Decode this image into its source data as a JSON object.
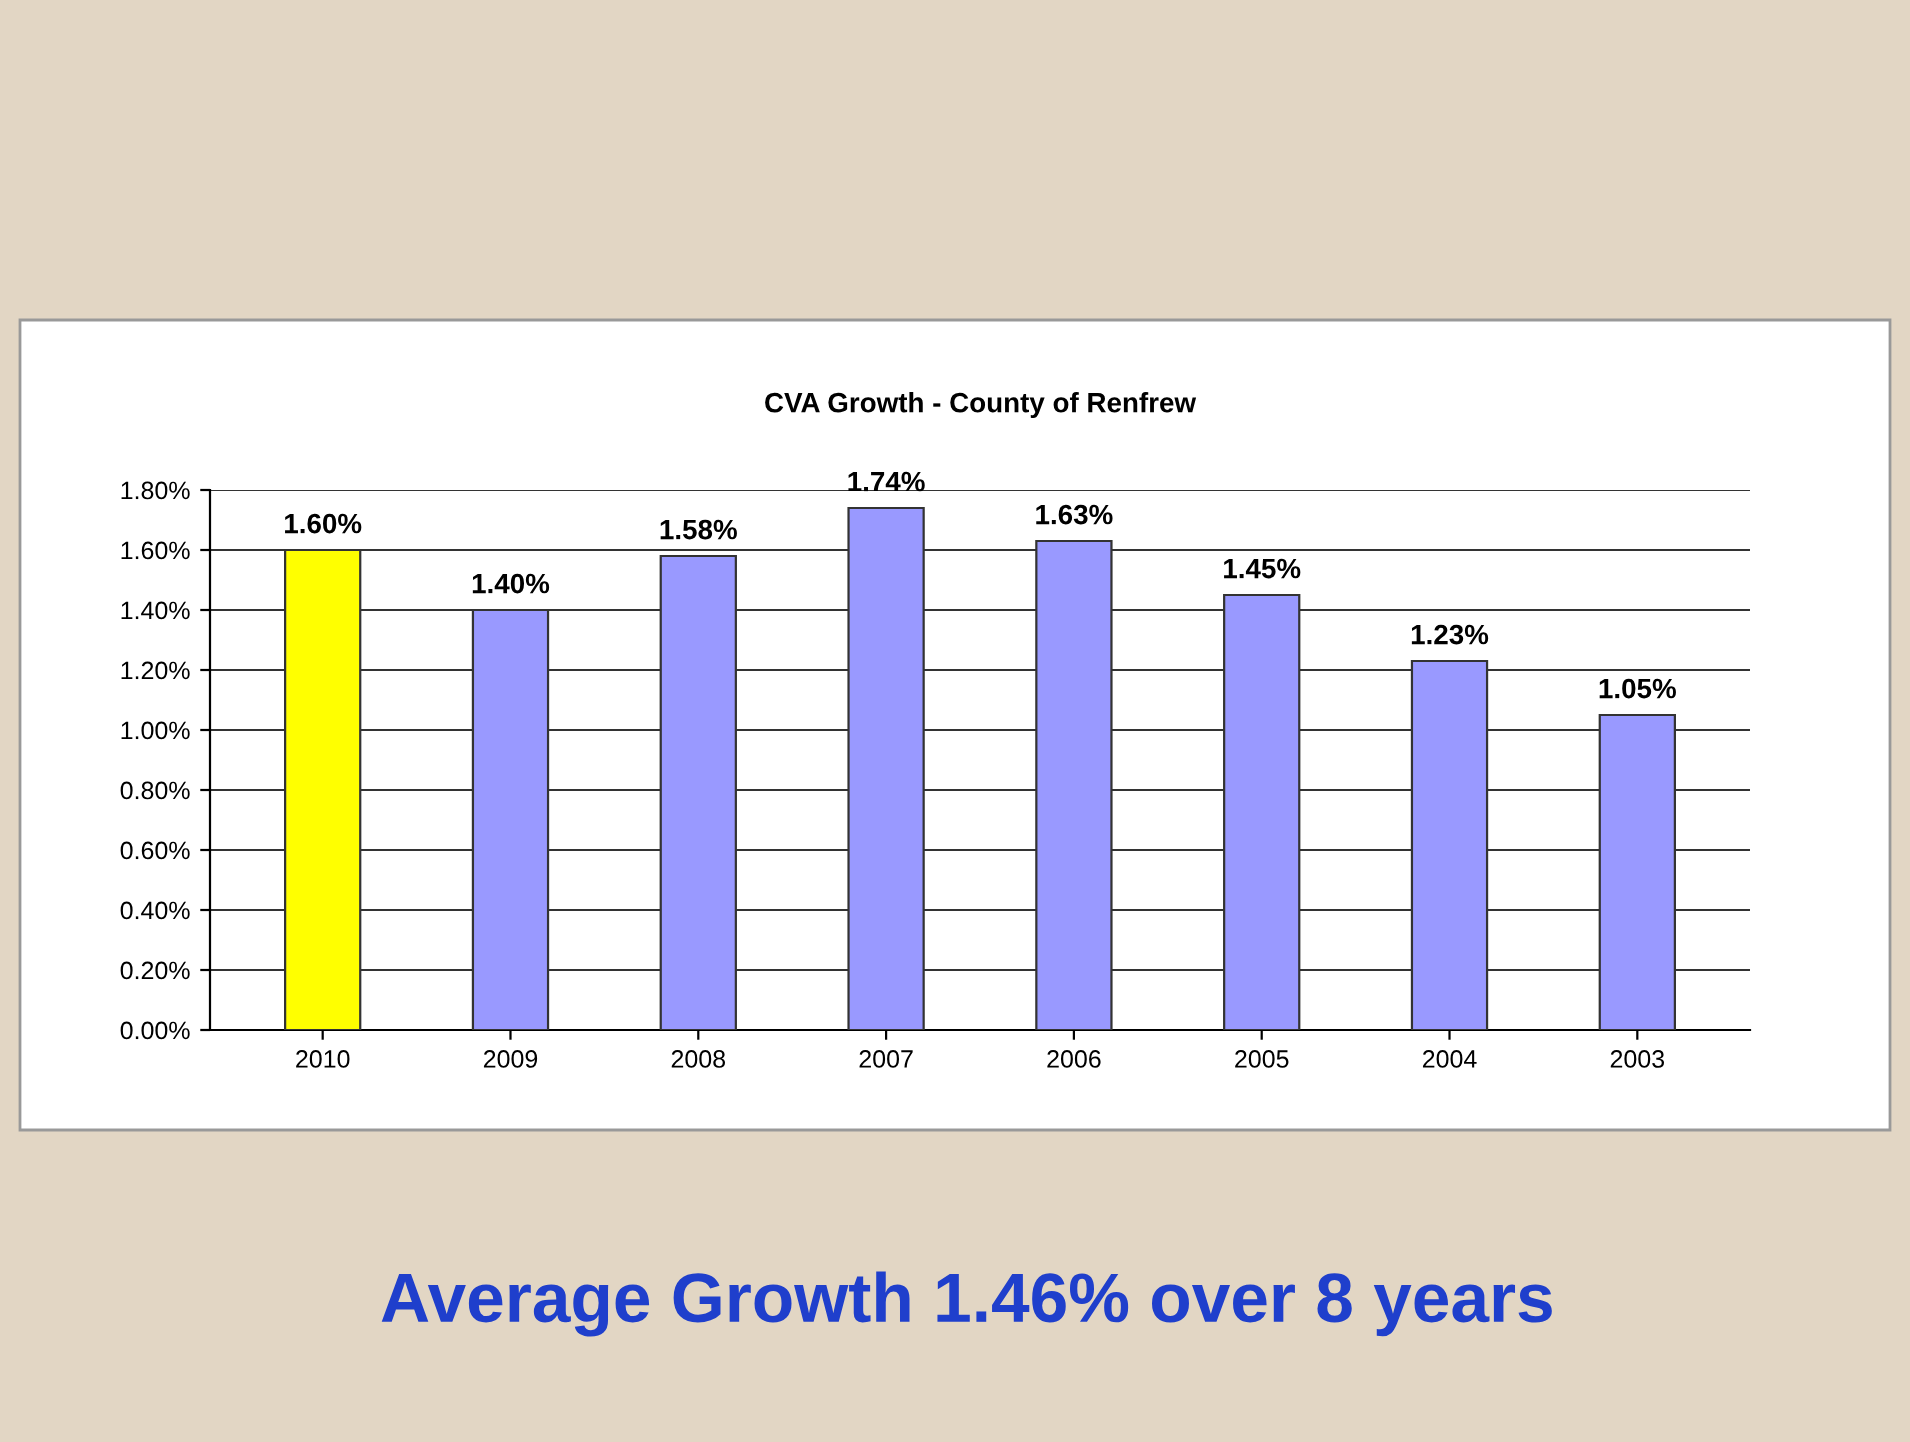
{
  "chart_data": {
    "type": "bar",
    "title": "CVA Growth - County of Renfrew",
    "categories": [
      "2010",
      "2009",
      "2008",
      "2007",
      "2006",
      "2005",
      "2004",
      "2003"
    ],
    "values": [
      1.6,
      1.4,
      1.58,
      1.74,
      1.63,
      1.45,
      1.23,
      1.05
    ],
    "value_labels": [
      "1.60%",
      "1.40%",
      "1.58%",
      "1.74%",
      "1.63%",
      "1.45%",
      "1.23%",
      "1.05%"
    ],
    "colors": [
      "#ffff00",
      "#9999ff",
      "#9999ff",
      "#9999ff",
      "#9999ff",
      "#9999ff",
      "#9999ff",
      "#9999ff"
    ],
    "ylim": [
      0,
      1.8
    ],
    "yticks": [
      {
        "value": 0,
        "label": "0.00%"
      },
      {
        "value": 0.2,
        "label": "0.20%"
      },
      {
        "value": 0.4,
        "label": "0.40%"
      },
      {
        "value": 0.6,
        "label": "0.60%"
      },
      {
        "value": 0.8,
        "label": "0.80%"
      },
      {
        "value": 1.0,
        "label": "1.00%"
      },
      {
        "value": 1.2,
        "label": "1.20%"
      },
      {
        "value": 1.4,
        "label": "1.40%"
      },
      {
        "value": 1.6,
        "label": "1.60%"
      },
      {
        "value": 1.8,
        "label": "1.80%"
      }
    ],
    "grid": "y",
    "annotations": [
      "Average Growth 1.46% over 8 years"
    ]
  }
}
